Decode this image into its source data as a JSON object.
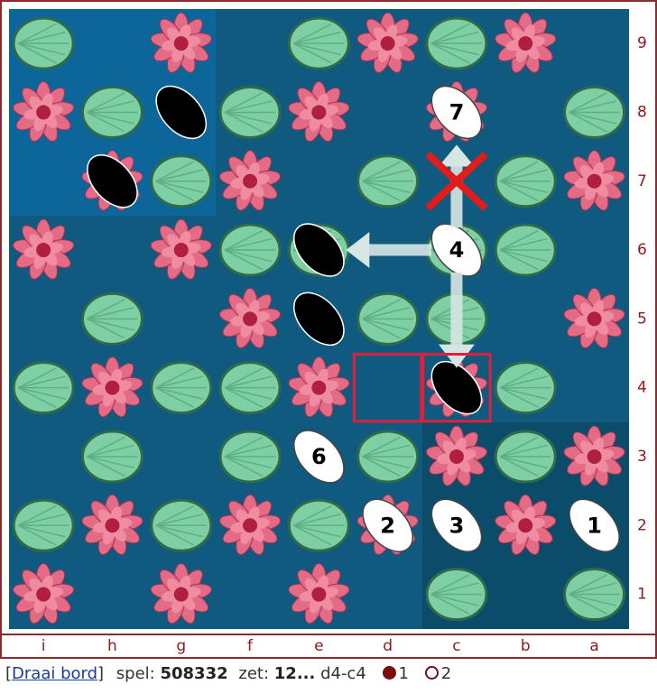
{
  "board": {
    "ranks": [
      9,
      8,
      7,
      6,
      5,
      4,
      3,
      2,
      1
    ],
    "files": [
      "i",
      "h",
      "g",
      "f",
      "e",
      "d",
      "c",
      "b",
      "a"
    ],
    "stone_numbers": [
      7,
      4,
      6,
      2,
      3,
      1
    ]
  },
  "footer": {
    "link_open": "[",
    "link": "Draai bord",
    "link_close": "]",
    "game_label": "spel:",
    "game_id": "508332",
    "move_label": "zet:",
    "move_number": "12...",
    "move": "d4-c4",
    "player1": "1",
    "player2": "2"
  }
}
